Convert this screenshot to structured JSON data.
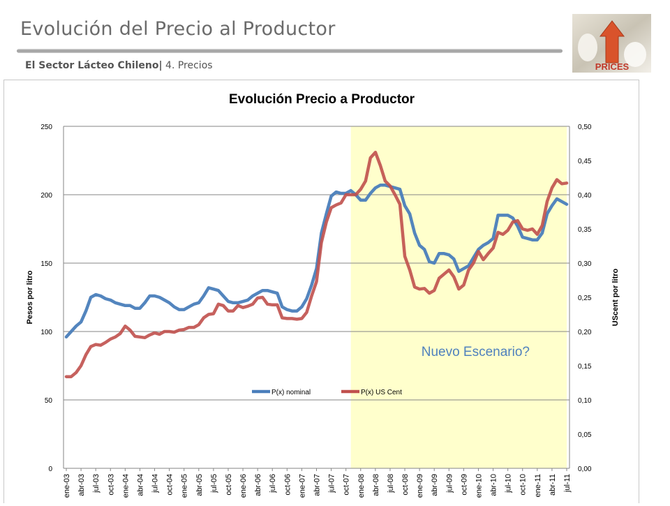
{
  "header": {
    "title": "Evolución del Precio al Productor",
    "subtitle_bold": "El Sector Lácteo Chileno|",
    "subtitle_rest": " 4. Precios",
    "logo_text": "PRICES"
  },
  "colors": {
    "nominal": "#4a7ebb",
    "uscent": "#c0504d",
    "highlight": "#ffffcc",
    "overlap": "#7f9a9a",
    "annotation": "#4f81bd"
  },
  "chart_data": {
    "type": "line",
    "title": "Evolución Precio a Productor",
    "ylabel": "Pesos por litro",
    "y2label": "UScent por litro",
    "ylim": [
      0,
      250
    ],
    "y2lim": [
      0,
      0.5
    ],
    "yticks": [
      "0",
      "50",
      "100",
      "150",
      "200",
      "250"
    ],
    "y2ticks": [
      "0,00",
      "0,05",
      "0,10",
      "0,15",
      "0,20",
      "0,25",
      "0,30",
      "0,35",
      "0,40",
      "0,45",
      "0,50"
    ],
    "x_labels": [
      "ene-03",
      "abr-03",
      "jul-03",
      "oct-03",
      "ene-04",
      "abr-04",
      "jul-04",
      "oct-04",
      "ene-05",
      "abr-05",
      "jul-05",
      "oct-05",
      "ene-06",
      "abr-06",
      "jul-06",
      "oct-06",
      "ene-07",
      "abr-07",
      "jul-07",
      "oct-07",
      "ene-08",
      "abr-08",
      "jul-08",
      "oct-08",
      "ene-09",
      "abr-09",
      "jul-09",
      "oct-09",
      "ene-10",
      "abr-10",
      "jul-10",
      "oct-10",
      "ene-11",
      "abr-11",
      "jul-11"
    ],
    "highlight": {
      "from": 58,
      "to": 102,
      "label": "Nuevo Escenario?"
    },
    "legend": {
      "position": "bottom-center",
      "items": [
        "P(x) nominal",
        "P(x) US Cent"
      ]
    },
    "series": [
      {
        "name": "P(x) nominal",
        "axis": "left",
        "values": [
          96,
          100,
          104,
          107,
          115,
          125,
          127,
          126,
          124,
          123,
          121,
          120,
          119,
          119,
          117,
          117,
          121,
          126,
          126,
          125,
          123,
          121,
          118,
          116,
          116,
          118,
          120,
          121,
          126,
          132,
          131,
          130,
          126,
          122,
          121,
          121,
          122,
          123,
          126,
          128,
          130,
          130,
          129,
          128,
          118,
          116,
          115,
          115,
          118,
          124,
          134,
          146,
          172,
          186,
          199,
          202,
          201,
          201,
          203,
          200,
          196,
          196,
          201,
          205,
          207,
          207,
          206,
          205,
          204,
          192,
          186,
          172,
          163,
          160,
          151,
          150,
          157,
          157,
          156,
          153,
          144,
          146,
          148,
          154,
          160,
          163,
          165,
          168,
          185,
          185,
          185,
          183,
          177,
          169,
          168,
          167,
          167,
          172,
          186,
          192,
          197,
          195,
          193
        ]
      },
      {
        "name": "P(x) US Cent",
        "axis": "right",
        "values": [
          0.134,
          0.134,
          0.14,
          0.15,
          0.166,
          0.178,
          0.181,
          0.18,
          0.184,
          0.189,
          0.192,
          0.197,
          0.208,
          0.202,
          0.193,
          0.192,
          0.191,
          0.195,
          0.198,
          0.196,
          0.2,
          0.2,
          0.199,
          0.202,
          0.203,
          0.206,
          0.206,
          0.21,
          0.22,
          0.225,
          0.226,
          0.24,
          0.238,
          0.23,
          0.23,
          0.238,
          0.235,
          0.237,
          0.24,
          0.249,
          0.25,
          0.24,
          0.239,
          0.239,
          0.22,
          0.219,
          0.219,
          0.218,
          0.219,
          0.228,
          0.252,
          0.273,
          0.33,
          0.36,
          0.381,
          0.385,
          0.388,
          0.4,
          0.4,
          0.4,
          0.408,
          0.42,
          0.454,
          0.462,
          0.443,
          0.42,
          0.413,
          0.4,
          0.386,
          0.31,
          0.29,
          0.265,
          0.262,
          0.263,
          0.256,
          0.26,
          0.278,
          0.284,
          0.29,
          0.28,
          0.262,
          0.268,
          0.29,
          0.3,
          0.317,
          0.305,
          0.314,
          0.322,
          0.345,
          0.342,
          0.348,
          0.36,
          0.362,
          0.35,
          0.348,
          0.35,
          0.342,
          0.355,
          0.39,
          0.41,
          0.422,
          0.416,
          0.417
        ]
      }
    ]
  }
}
